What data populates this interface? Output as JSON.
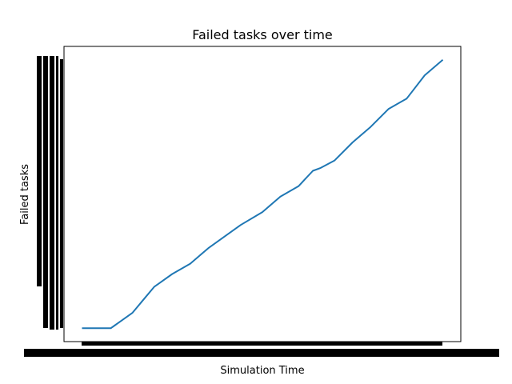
{
  "chart_data": {
    "type": "line",
    "title": "Failed tasks over time",
    "xlabel": "Simulation Time",
    "ylabel": "Failed tasks",
    "grid": false,
    "legend": "none",
    "series": [
      {
        "name": "Failed tasks",
        "color": "#1f77b4",
        "x": [
          0,
          4,
          8,
          9,
          10,
          14,
          17,
          20,
          22,
          25,
          30,
          35,
          40,
          44,
          50,
          55,
          60,
          64,
          66,
          70,
          75,
          80,
          85,
          90,
          95,
          100
        ],
        "y": [
          0,
          0,
          0,
          1,
          2,
          6,
          11,
          16,
          18,
          21,
          25,
          31,
          36,
          40,
          45,
          51,
          55,
          61,
          62,
          65,
          72,
          78,
          85,
          89,
          98,
          104
        ]
      }
    ],
    "xlim": [
      -5,
      105
    ],
    "ylim": [
      -5.2,
      109.2
    ],
    "tick_labels_note": "x and y tick labels are dense overlapping numeric labels rendered as solid black bands (illegible)"
  }
}
